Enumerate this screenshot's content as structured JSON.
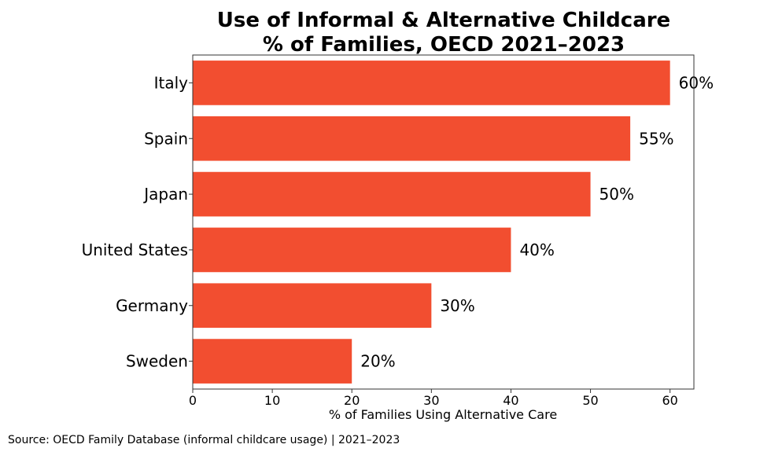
{
  "chart_data": {
    "type": "bar",
    "orientation": "horizontal",
    "title_lines": [
      "Use of Informal & Alternative Childcare",
      "% of Families, OECD 2021–2023"
    ],
    "categories": [
      "Italy",
      "Spain",
      "Japan",
      "United States",
      "Germany",
      "Sweden"
    ],
    "values": [
      60,
      55,
      50,
      40,
      30,
      20
    ],
    "data_labels": [
      "60%",
      "55%",
      "50%",
      "40%",
      "30%",
      "20%"
    ],
    "xlabel": "% of Families Using Alternative Care",
    "ylabel": "",
    "xlim": [
      0,
      63
    ],
    "xticks": [
      0,
      10,
      20,
      30,
      40,
      50,
      60
    ],
    "xtick_labels": [
      "0",
      "10",
      "20",
      "30",
      "40",
      "50",
      "60"
    ],
    "grid": false,
    "bar_color": "#F24E30"
  },
  "footer": {
    "source": "Source: OECD Family Database (informal childcare usage) | 2021–2023"
  }
}
